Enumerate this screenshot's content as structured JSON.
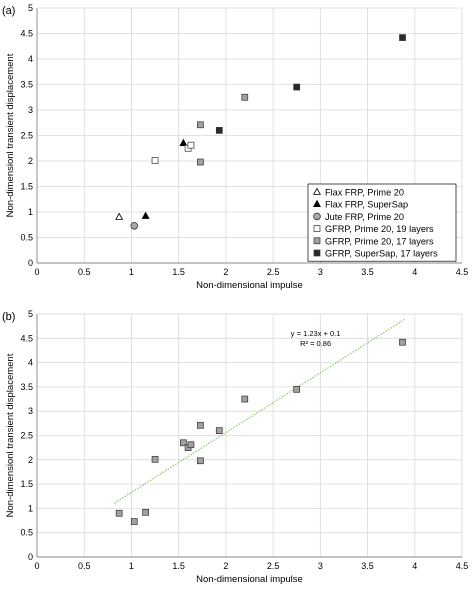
{
  "panels": [
    {
      "tag": "(a)",
      "type": "scatter",
      "xlabel": "Non-dimensional impulse",
      "ylabel": "Non-dimensionl transient displacement",
      "xlim": [
        0,
        4.5
      ],
      "ylim": [
        0,
        5
      ],
      "xticks": [
        "0",
        "0.5",
        "1",
        "1.5",
        "2",
        "2.5",
        "3",
        "3.5",
        "4",
        "4.5"
      ],
      "yticks": [
        "0",
        "0.5",
        "1",
        "1.5",
        "2",
        "2.5",
        "3",
        "3.5",
        "4",
        "4.5",
        "5"
      ],
      "grid": true,
      "legend_position": "bottom-right",
      "series": [
        {
          "name": "Flax FRP, Prime 20",
          "marker": "triangle-open",
          "color": "#ffffff",
          "x": [
            0.87
          ],
          "y": [
            0.9
          ]
        },
        {
          "name": "Flax FRP, SuperSap",
          "marker": "triangle-filled",
          "color": "#000000",
          "x": [
            1.15,
            1.55
          ],
          "y": [
            0.92,
            2.35
          ]
        },
        {
          "name": "Jute FRP, Prime 20",
          "marker": "circle",
          "color": "#a9a9a9",
          "x": [
            1.03
          ],
          "y": [
            0.73
          ]
        },
        {
          "name": "GFRP, Prime 20, 19 layers",
          "marker": "square-open",
          "color": "#ffffff",
          "x": [
            1.25,
            1.6,
            1.63
          ],
          "y": [
            2.01,
            2.25,
            2.31
          ]
        },
        {
          "name": "GFRP, Prime 20, 17 layers",
          "marker": "square-gray",
          "color": "#a0a0a0",
          "x": [
            1.73,
            1.73,
            2.2
          ],
          "y": [
            2.71,
            1.98,
            3.25
          ]
        },
        {
          "name": "GFRP, SuperSap, 17 layers",
          "marker": "square-filled",
          "color": "#2a2a2a",
          "x": [
            1.93,
            2.75,
            3.87
          ],
          "y": [
            2.6,
            3.45,
            4.42
          ]
        }
      ]
    },
    {
      "tag": "(b)",
      "type": "scatter",
      "xlabel": "Non-dimensional impulse",
      "ylabel": "Non-dimensionl transient displacement",
      "xlim": [
        0,
        4.5
      ],
      "ylim": [
        0,
        5
      ],
      "xticks": [
        "0",
        "0.5",
        "1",
        "1.5",
        "2",
        "2.5",
        "3",
        "3.5",
        "4",
        "4.5"
      ],
      "yticks": [
        "0",
        "0.5",
        "1",
        "1.5",
        "2",
        "2.5",
        "3",
        "3.5",
        "4",
        "4.5",
        "5"
      ],
      "grid": true,
      "series": [
        {
          "marker": "square-gray",
          "color": "#a0a0a0",
          "x": [
            0.87,
            1.03,
            1.15,
            1.25,
            1.55,
            1.6,
            1.63,
            1.73,
            1.73,
            1.93,
            2.2,
            2.75,
            3.87
          ],
          "y": [
            0.9,
            0.73,
            0.92,
            2.01,
            2.35,
            2.25,
            2.31,
            2.71,
            1.98,
            2.6,
            3.25,
            3.45,
            4.42
          ]
        }
      ],
      "trendline": {
        "slope": 1.23,
        "intercept": 0.1,
        "x_range": [
          0.82,
          3.9
        ],
        "color": "#7fbf5f",
        "equation": "y = 1.23x + 0.1",
        "r2": "R² = 0.86"
      }
    }
  ]
}
